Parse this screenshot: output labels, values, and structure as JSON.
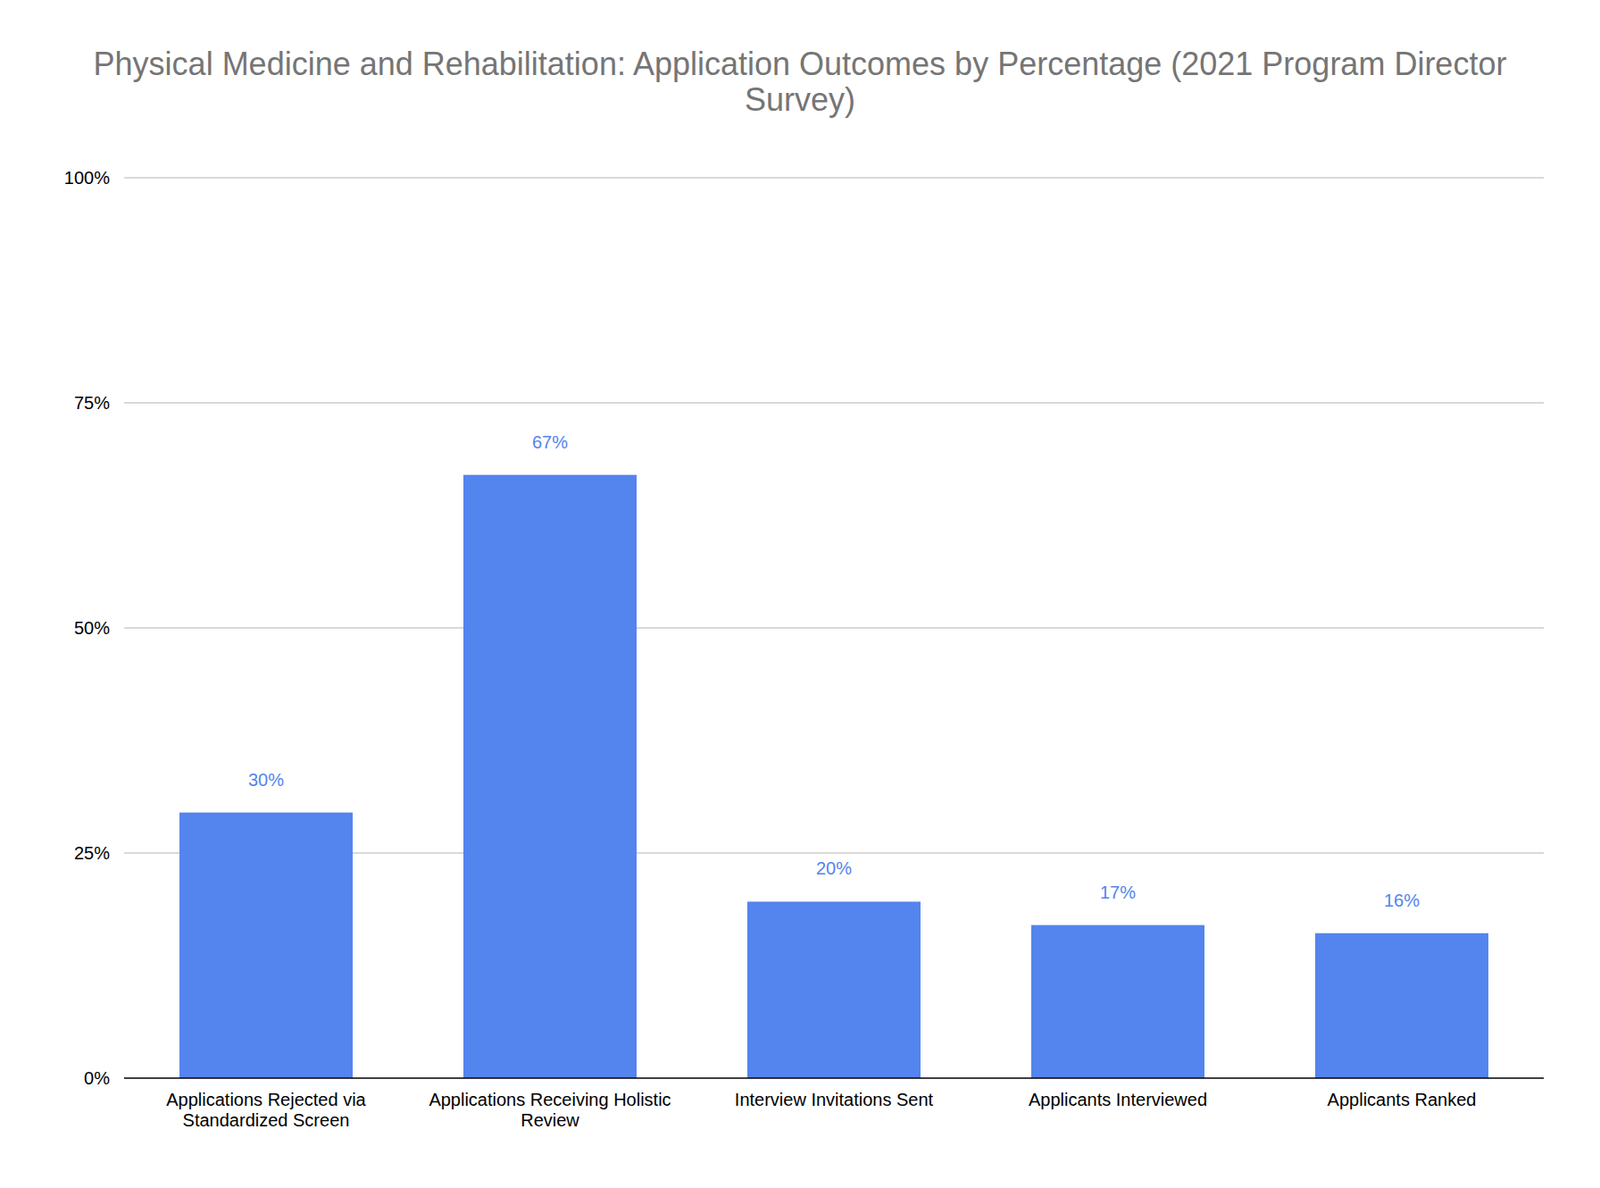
{
  "chart_data": {
    "type": "bar",
    "title": "Physical Medicine and Rehabilitation: Application Outcomes by Percentage (2021 Program Director Survey)",
    "categories": [
      "Applications Rejected via Standardized Screen",
      "Applications Receiving Holistic Review",
      "Interview Invitations Sent",
      "Applicants Interviewed",
      "Applicants Ranked"
    ],
    "values": [
      29.5,
      67,
      19.6,
      17,
      16.1
    ],
    "value_labels": [
      "30%",
      "67%",
      "20%",
      "17%",
      "16%"
    ],
    "color": "#5484ed",
    "ylim": [
      0,
      100
    ],
    "yticks": [
      {
        "value": 0,
        "label": "0%"
      },
      {
        "value": 25,
        "label": "25%"
      },
      {
        "value": 50,
        "label": "50%"
      },
      {
        "value": 75,
        "label": "75%"
      },
      {
        "value": 100,
        "label": "100%"
      }
    ],
    "grid": true,
    "data_labels": true
  }
}
